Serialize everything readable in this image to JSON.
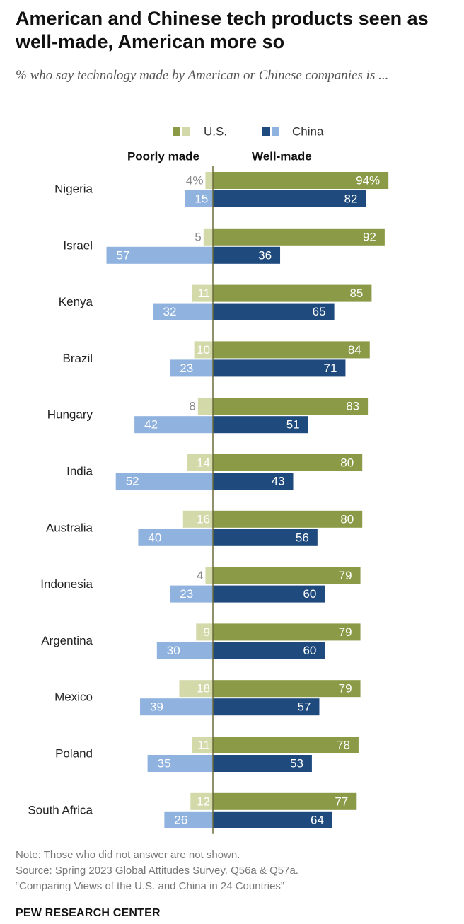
{
  "title": "American and Chinese tech products seen as well-made, American more so",
  "subtitle": "% who say technology made by American or Chinese companies is ...",
  "notes": {
    "note": "Note: Those who did not answer are not shown.",
    "source": "Source: Spring 2023 Global Attitudes Survey. Q56a & Q57a.",
    "report": "“Comparing Views of the U.S. and China in 24 Countries”"
  },
  "brand": "PEW RESEARCH CENTER",
  "colors": {
    "us_well": "#8a9a46",
    "us_poor": "#d3d9a9",
    "china_well": "#1f4a7d",
    "china_poor": "#8fb2df",
    "axis": "#6b6b3a",
    "label_dark": "#ffffff",
    "label_light": "#ffffff",
    "label_outside": "#888888"
  },
  "chart_data": {
    "type": "bar",
    "orientation": "horizontal-diverging",
    "legend_placement": "top",
    "legend": [
      {
        "name": "U.S.",
        "swatch_colors": [
          "#8a9a46",
          "#d3d9a9"
        ]
      },
      {
        "name": "China",
        "swatch_colors": [
          "#1f4a7d",
          "#8fb2df"
        ]
      }
    ],
    "side_headers": {
      "left": "Poorly made",
      "right": "Well-made"
    },
    "categories": [
      "Nigeria",
      "Israel",
      "Kenya",
      "Brazil",
      "Hungary",
      "India",
      "Australia",
      "Indonesia",
      "Argentina",
      "Mexico",
      "Poland",
      "South Africa"
    ],
    "series": [
      {
        "name": "U.S.",
        "well_made": [
          94,
          92,
          85,
          84,
          83,
          80,
          80,
          79,
          79,
          79,
          78,
          77
        ],
        "poorly_made": [
          4,
          5,
          11,
          10,
          8,
          14,
          16,
          4,
          9,
          18,
          11,
          12
        ]
      },
      {
        "name": "China",
        "well_made": [
          82,
          36,
          65,
          71,
          51,
          43,
          56,
          60,
          60,
          57,
          53,
          64
        ],
        "poorly_made": [
          15,
          57,
          32,
          23,
          42,
          52,
          40,
          23,
          30,
          39,
          35,
          26
        ]
      }
    ],
    "value_labels": {
      "us_well": [
        "94%",
        "92",
        "85",
        "84",
        "83",
        "80",
        "80",
        "79",
        "79",
        "79",
        "78",
        "77"
      ],
      "us_poor": [
        "4%",
        "5",
        "11",
        "10",
        "8",
        "14",
        "16",
        "4",
        "9",
        "18",
        "11",
        "12"
      ],
      "china_well": [
        "82",
        "36",
        "65",
        "71",
        "51",
        "43",
        "56",
        "60",
        "60",
        "57",
        "53",
        "64"
      ],
      "china_poor": [
        "15",
        "57",
        "32",
        "23",
        "42",
        "52",
        "40",
        "23",
        "30",
        "39",
        "35",
        "26"
      ]
    },
    "unit": "%"
  }
}
